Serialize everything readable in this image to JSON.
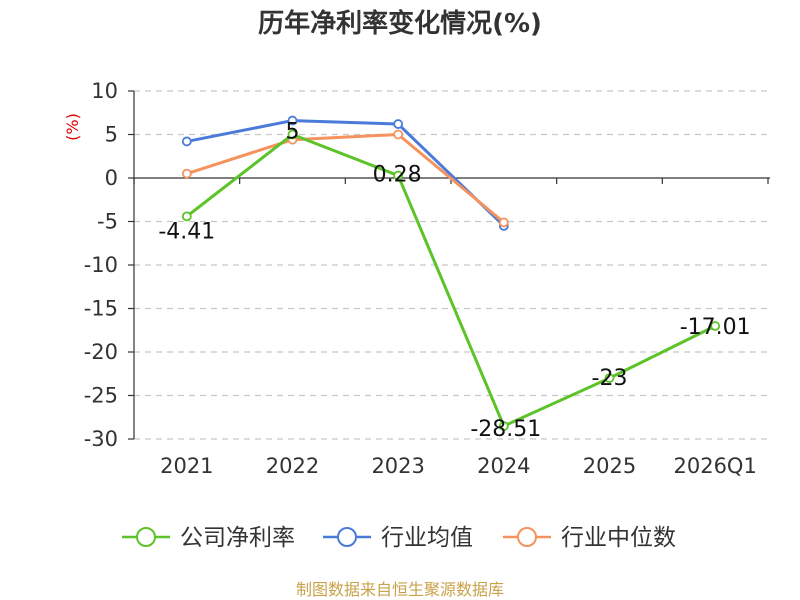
{
  "chart_data": {
    "type": "line",
    "title": "历年净利率变化情况(%)",
    "ylabel": "(%)",
    "categories": [
      "2021",
      "2022",
      "2023",
      "2024",
      "2025",
      "2026Q1"
    ],
    "ylim": [
      -30,
      10
    ],
    "yticks": [
      10,
      5,
      0,
      -5,
      -10,
      -15,
      -20,
      -25,
      -30
    ],
    "grid": true,
    "legend_position": "bottom",
    "series": [
      {
        "name": "公司净利率",
        "color": "#5cc328",
        "values": [
          -4.41,
          5,
          0.28,
          -28.51,
          -23,
          -17.01
        ],
        "labels": [
          "-4.41",
          "5",
          "0.28",
          "-28.51",
          "-23",
          "-17.01"
        ]
      },
      {
        "name": "行业均值",
        "color": "#4a7bd8",
        "values": [
          4.2,
          6.6,
          6.2,
          -5.5,
          null,
          null
        ]
      },
      {
        "name": "行业中位数",
        "color": "#f5925e",
        "values": [
          0.5,
          4.4,
          5.0,
          -5.1,
          null,
          null
        ]
      }
    ]
  },
  "source": "制图数据来自恒生聚源数据库"
}
